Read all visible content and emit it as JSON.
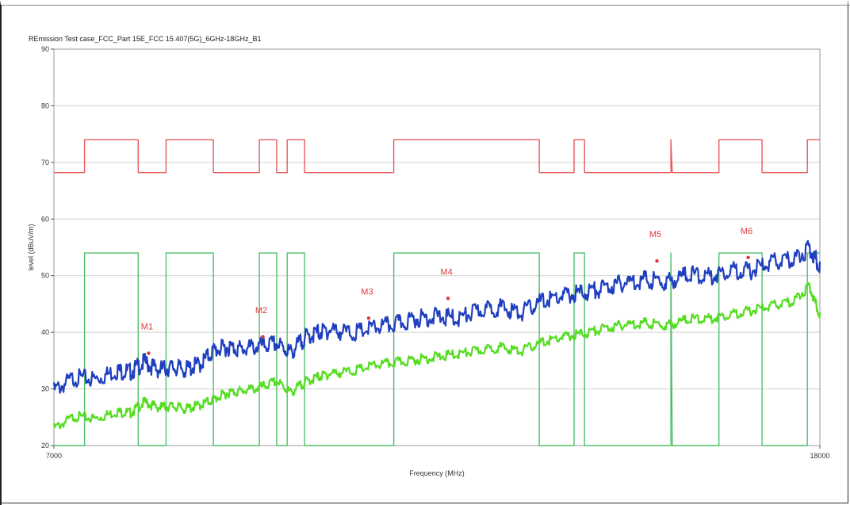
{
  "chart_data": {
    "type": "line",
    "title": "REmission Test case_FCC_Part 15E_FCC 15.407(5G)_6GHz-18GHz_B1",
    "xlabel": "Frequency (MHz)",
    "ylabel": "level (dBuV/m)",
    "xlim": [
      7000,
      18000
    ],
    "ylim": [
      20,
      90
    ],
    "x_ticks": [
      "7000",
      "18000"
    ],
    "y_ticks": [
      "20",
      "30",
      "40",
      "50",
      "60",
      "70",
      "80",
      "90"
    ],
    "grid": true,
    "colors": {
      "peak": "#1f3fbf",
      "average": "#55dd22",
      "limit_peak": "#e85a5a",
      "limit_avg": "#4ec06a",
      "marker": "#e0353b",
      "grid": "#d0d0d0"
    },
    "series": [
      {
        "kind": "limit_peak",
        "x": [
          7000,
          7440,
          7440,
          8210,
          8210,
          8610,
          8610,
          9290,
          9290,
          9950,
          9950,
          10200,
          10200,
          10350,
          10350,
          10350,
          10350,
          10600,
          10600,
          11880,
          11880,
          13970,
          13970,
          14470,
          14470,
          14620,
          14620,
          15860,
          15860,
          15880,
          15880,
          16550,
          16550,
          17170,
          17170,
          17820,
          17820,
          18000
        ],
        "values": [
          68.2,
          68.2,
          74,
          74,
          68.2,
          68.2,
          74,
          74,
          68.2,
          68.2,
          74,
          74,
          68.2,
          68.2,
          74,
          74,
          74,
          74,
          68.2,
          68.2,
          74,
          74,
          68.2,
          68.2,
          74,
          74,
          68.2,
          68.2,
          74,
          68.2,
          68.2,
          68.2,
          74,
          74,
          68.2,
          68.2,
          74,
          74
        ]
      },
      {
        "kind": "limit_avg",
        "x": [
          7000,
          7440,
          7440,
          8210,
          8210,
          8610,
          8610,
          9290,
          9290,
          9950,
          9950,
          10200,
          10200,
          10350,
          10350,
          10600,
          10600,
          11880,
          11880,
          13970,
          13970,
          14470,
          14470,
          14620,
          14620,
          15860,
          15860,
          15880,
          15880,
          16550,
          16550,
          17170,
          17170,
          17820,
          17820,
          18000
        ],
        "values": [
          20,
          20,
          54,
          54,
          20,
          20,
          54,
          54,
          20,
          20,
          54,
          54,
          20,
          20,
          54,
          54,
          20,
          20,
          54,
          54,
          20,
          20,
          54,
          54,
          20,
          20,
          54,
          20,
          20,
          20,
          54,
          54,
          20,
          20,
          54,
          54
        ]
      },
      {
        "kind": "peak",
        "x": [
          7000,
          7300,
          7600,
          7900,
          8100,
          8300,
          8500,
          8700,
          8900,
          9100,
          9300,
          9500,
          9700,
          9950,
          10200,
          10400,
          10600,
          10800,
          11000,
          11300,
          11600,
          11900,
          12200,
          12500,
          12800,
          13100,
          13400,
          13700,
          14000,
          14300,
          14600,
          14900,
          15200,
          15500,
          15800,
          16100,
          16400,
          16700,
          17000,
          17300,
          17600,
          17850,
          18000
        ],
        "values": [
          30.5,
          32.8,
          32.5,
          34,
          33.8,
          35.5,
          34.2,
          34.6,
          34.2,
          35.2,
          37.6,
          38.2,
          37.8,
          38.3,
          38.8,
          37.2,
          39.8,
          40.8,
          41.2,
          40.6,
          41.6,
          42.2,
          43.2,
          43.6,
          43.2,
          44.6,
          45.2,
          44.2,
          46.2,
          47.2,
          47.8,
          48.6,
          49.6,
          50.1,
          49.6,
          51.1,
          50.6,
          51.8,
          51.6,
          53.1,
          53.6,
          55.6,
          52.5
        ]
      },
      {
        "kind": "average",
        "x": [
          7000,
          7300,
          7600,
          7900,
          8100,
          8300,
          8500,
          8700,
          8900,
          9100,
          9300,
          9500,
          9700,
          9950,
          10200,
          10400,
          10600,
          10800,
          11000,
          11300,
          11600,
          11900,
          12200,
          12500,
          12800,
          13100,
          13400,
          13700,
          14000,
          14300,
          14600,
          14900,
          15200,
          15500,
          15800,
          16100,
          16400,
          16700,
          17000,
          17300,
          17600,
          17850,
          18000
        ],
        "values": [
          23.5,
          25.6,
          25.2,
          26.4,
          26.2,
          28.1,
          27.2,
          27.4,
          26.9,
          27.6,
          28.6,
          29.8,
          30.1,
          30.6,
          31.8,
          29.8,
          31.6,
          32.6,
          33.2,
          33.6,
          34.6,
          35.1,
          35.6,
          36.1,
          36.6,
          37.2,
          37.8,
          37.1,
          38.6,
          39.6,
          40.2,
          41.1,
          41.8,
          42.1,
          41.6,
          42.8,
          42.8,
          43.6,
          44.2,
          45.1,
          45.8,
          48.6,
          43.5
        ]
      }
    ],
    "markers": [
      {
        "label": "M1",
        "x": 8360,
        "y": 36.3
      },
      {
        "label": "M2",
        "x": 10000,
        "y": 39.2
      },
      {
        "label": "M3",
        "x": 11520,
        "y": 42.5
      },
      {
        "label": "M4",
        "x": 12660,
        "y": 46.0
      },
      {
        "label": "M5",
        "x": 15660,
        "y": 52.6
      },
      {
        "label": "M6",
        "x": 16970,
        "y": 53.2
      }
    ]
  }
}
